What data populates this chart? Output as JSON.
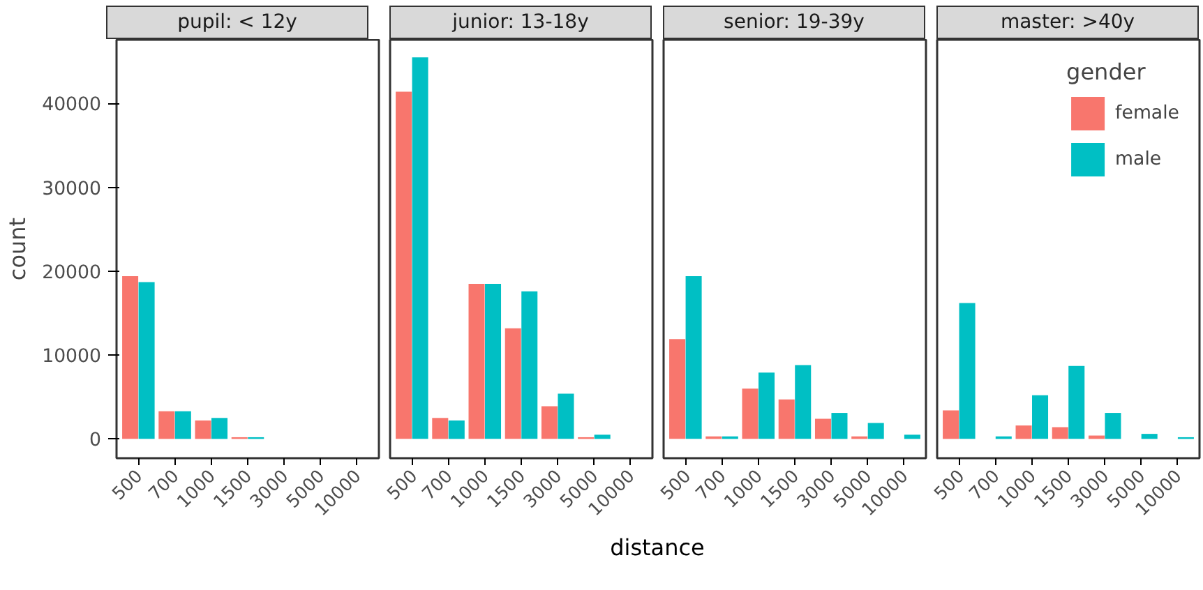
{
  "chart_data": [
    {
      "type": "bar",
      "title": "pupil: < 12y",
      "ylabel": "count",
      "categories": [
        "500",
        "700",
        "1000",
        "1500",
        "3000",
        "5000",
        "10000"
      ],
      "ylim": [
        -2300,
        47600
      ],
      "yticks": [
        0,
        10000,
        20000,
        30000,
        40000
      ],
      "grid": false,
      "series": [
        {
          "color": "#f8766d",
          "values": [
            19400,
            3300,
            2200,
            200,
            null,
            null,
            null
          ]
        },
        {
          "color": "#00bfc4",
          "values": [
            18700,
            3300,
            2500,
            200,
            null,
            null,
            null
          ]
        }
      ]
    },
    {
      "type": "bar",
      "title": "junior: 13-18y",
      "xlabel": "distance",
      "categories": [
        "500",
        "700",
        "1000",
        "1500",
        "3000",
        "5000",
        "10000"
      ],
      "ylim": [
        -2300,
        47600
      ],
      "yticks": [
        0,
        10000,
        20000,
        30000,
        40000
      ],
      "grid": false,
      "tick_labels": "x",
      "series": [
        {
          "color": "#f8766d",
          "values": [
            41400,
            2500,
            18500,
            13200,
            3900,
            200,
            null
          ]
        },
        {
          "color": "#00bfc4",
          "values": [
            45500,
            2200,
            18500,
            17600,
            5400,
            500,
            null
          ]
        }
      ]
    },
    {
      "type": "bar",
      "title": "senior: 19-39y",
      "categories": [
        "500",
        "700",
        "1000",
        "1500",
        "3000",
        "5000",
        "10000"
      ],
      "ylim": [
        -2300,
        47600
      ],
      "yticks": [
        0,
        10000,
        20000,
        30000,
        40000
      ],
      "grid": false,
      "tick_labels": "x",
      "series": [
        {
          "color": "#f8766d",
          "values": [
            11900,
            300,
            6000,
            4700,
            2400,
            300,
            null
          ]
        },
        {
          "color": "#00bfc4",
          "values": [
            19400,
            300,
            7900,
            8800,
            3100,
            1900,
            500
          ]
        }
      ]
    },
    {
      "type": "bar",
      "title": "master: >40y",
      "legend_title": "gender",
      "legend": "top right",
      "categories": [
        "500",
        "700",
        "1000",
        "1500",
        "3000",
        "5000",
        "10000"
      ],
      "ylim": [
        -2300,
        47600
      ],
      "yticks": [
        0,
        10000,
        20000,
        30000,
        40000
      ],
      "grid": false,
      "tick_labels": "x",
      "series": [
        {
          "name": "female",
          "color": "#f8766d",
          "values": [
            3400,
            null,
            1600,
            1400,
            400,
            null,
            null
          ]
        },
        {
          "name": "male",
          "color": "#00bfc4",
          "values": [
            16200,
            300,
            5200,
            8700,
            3100,
            600,
            200
          ]
        }
      ]
    }
  ]
}
